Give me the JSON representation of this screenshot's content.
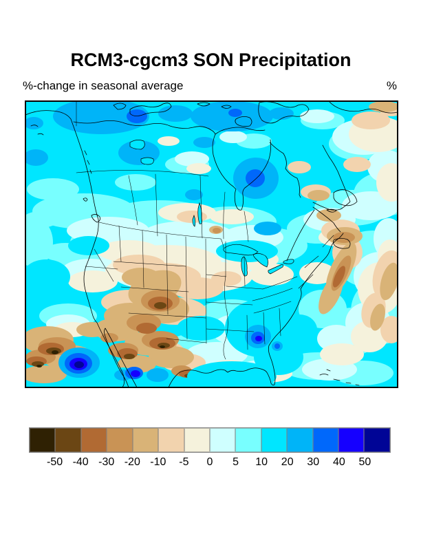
{
  "figure": {
    "title": "RCM3-cgcm3 SON Precipitation",
    "subtitle_left": "%-change in seasonal average",
    "units_label": "%"
  },
  "map": {
    "region": "North America",
    "plot_type": "filled contour map",
    "coastline_color": "#000000",
    "base_fill": "#00e6ff"
  },
  "colorbar": {
    "orientation": "horizontal",
    "tick_labels": [
      "-50",
      "-40",
      "-30",
      "-20",
      "-10",
      "-5",
      "0",
      "5",
      "10",
      "20",
      "30",
      "40",
      "50"
    ],
    "segment_colors": [
      "#2f2103",
      "#6b4614",
      "#b16a33",
      "#c99355",
      "#d9b377",
      "#f2d3ae",
      "#f5f2dc",
      "#cfffff",
      "#78ffff",
      "#00e6ff",
      "#00b4f8",
      "#0068fb",
      "#1500ff",
      "#000596"
    ],
    "border_color": "#8a8a8a"
  },
  "chart_data": {
    "type": "heatmap",
    "title": "RCM3-cgcm3 SON Precipitation",
    "subtitle": "%-change in seasonal average",
    "units": "%",
    "scale_boundaries": [
      -50,
      -40,
      -30,
      -20,
      -10,
      -5,
      0,
      5,
      10,
      20,
      30,
      40,
      50
    ],
    "scale_colors": [
      "#2f2103",
      "#6b4614",
      "#b16a33",
      "#c99355",
      "#d9b377",
      "#f2d3ae",
      "#f5f2dc",
      "#cfffff",
      "#78ffff",
      "#00e6ff",
      "#00b4f8",
      "#0068fb",
      "#1500ff",
      "#000596"
    ],
    "legend_position": "bottom",
    "notable_features": [
      "Widespread 10-30% increase (cyan/blue) across Canada, Alaska and the Southeast US",
      "20-30% increase patches over NW Canada, the Arctic and east of Hudson Bay",
      "Drying of 10-40% (tan/brown) over the Rocky Mountains, Southwest US and Mexico",
      "Strong drying (<-40%) in the lower-left Pacific corner and interior Mexico",
      "Intense >50% wet anomaly (navy core) offshore of Baja California",
      "30-50% wet spot over Alabama/Georgia",
      "Dry streak along the Appalachians, Mid-Atlantic coast and Nova Scotia",
      "Dry streaks in the western Atlantic and near Greenland"
    ]
  }
}
